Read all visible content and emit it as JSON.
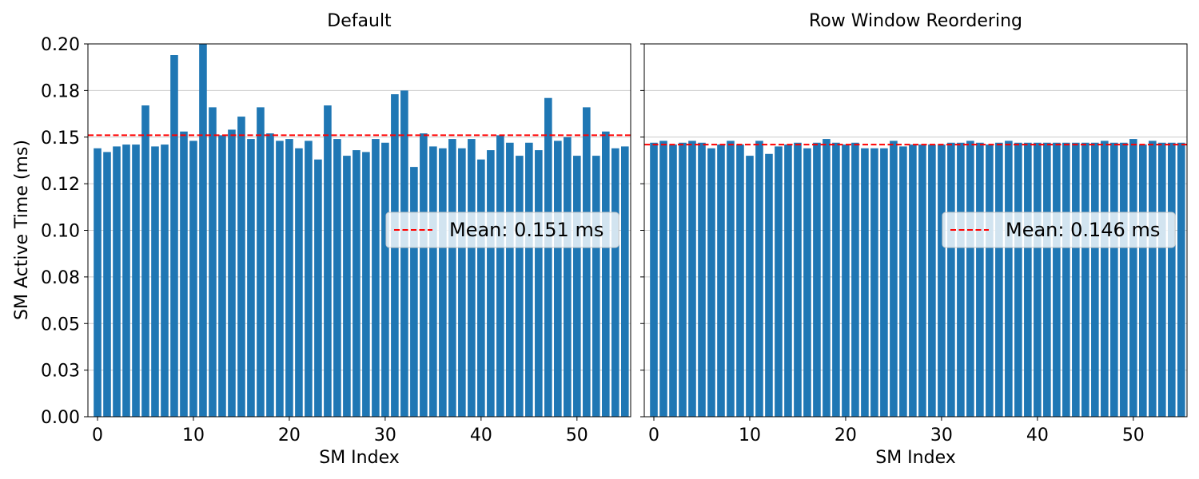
{
  "figure": {
    "ylabel": "SM Active Time (ms)"
  },
  "chart_data": [
    {
      "type": "bar",
      "title": "Default",
      "xlabel": "SM Index",
      "ylabel": "SM Active Time (ms)",
      "ylim": [
        0,
        0.2
      ],
      "xlim": [
        -1,
        55.6
      ],
      "yticks": [
        "0.00",
        "0.03",
        "0.05",
        "0.08",
        "0.10",
        "0.12",
        "0.15",
        "0.18",
        "0.20"
      ],
      "xticks": [
        "0",
        "10",
        "20",
        "30",
        "40",
        "50"
      ],
      "grid": "y",
      "legend": "center-right",
      "bar_color": "#1f77b4",
      "mean_line": {
        "label": "Mean: 0.151 ms",
        "value": 0.151,
        "color": "#ff0000"
      },
      "x": [
        0,
        1,
        2,
        3,
        4,
        5,
        6,
        7,
        8,
        9,
        10,
        11,
        12,
        13,
        14,
        15,
        16,
        17,
        18,
        19,
        20,
        21,
        22,
        23,
        24,
        25,
        26,
        27,
        28,
        29,
        30,
        31,
        32,
        33,
        34,
        35,
        36,
        37,
        38,
        39,
        40,
        41,
        42,
        43,
        44,
        45,
        46,
        47,
        48,
        49,
        50,
        51,
        52,
        53,
        54,
        55
      ],
      "values": [
        0.144,
        0.142,
        0.145,
        0.146,
        0.146,
        0.167,
        0.145,
        0.146,
        0.194,
        0.153,
        0.148,
        0.2,
        0.166,
        0.151,
        0.154,
        0.161,
        0.149,
        0.166,
        0.152,
        0.148,
        0.149,
        0.144,
        0.148,
        0.138,
        0.167,
        0.149,
        0.14,
        0.143,
        0.142,
        0.149,
        0.147,
        0.173,
        0.175,
        0.134,
        0.152,
        0.145,
        0.144,
        0.149,
        0.144,
        0.149,
        0.138,
        0.143,
        0.151,
        0.147,
        0.14,
        0.147,
        0.143,
        0.171,
        0.148,
        0.15,
        0.14,
        0.166,
        0.14,
        0.153,
        0.144,
        0.145
      ]
    },
    {
      "type": "bar",
      "title": "Row Window Reordering",
      "xlabel": "SM Index",
      "ylim": [
        0,
        0.2
      ],
      "xlim": [
        -1,
        55.6
      ],
      "xticks": [
        "0",
        "10",
        "20",
        "30",
        "40",
        "50"
      ],
      "grid": "y",
      "legend": "center-right",
      "bar_color": "#1f77b4",
      "mean_line": {
        "label": "Mean: 0.146 ms",
        "value": 0.146,
        "color": "#ff0000"
      },
      "x": [
        0,
        1,
        2,
        3,
        4,
        5,
        6,
        7,
        8,
        9,
        10,
        11,
        12,
        13,
        14,
        15,
        16,
        17,
        18,
        19,
        20,
        21,
        22,
        23,
        24,
        25,
        26,
        27,
        28,
        29,
        30,
        31,
        32,
        33,
        34,
        35,
        36,
        37,
        38,
        39,
        40,
        41,
        42,
        43,
        44,
        45,
        46,
        47,
        48,
        49,
        50,
        51,
        52,
        53,
        54,
        55
      ],
      "values": [
        0.147,
        0.148,
        0.146,
        0.147,
        0.148,
        0.147,
        0.144,
        0.146,
        0.148,
        0.146,
        0.14,
        0.148,
        0.141,
        0.145,
        0.146,
        0.147,
        0.144,
        0.147,
        0.149,
        0.147,
        0.146,
        0.147,
        0.144,
        0.144,
        0.144,
        0.148,
        0.145,
        0.146,
        0.146,
        0.146,
        0.146,
        0.147,
        0.147,
        0.148,
        0.147,
        0.146,
        0.147,
        0.148,
        0.147,
        0.147,
        0.147,
        0.147,
        0.147,
        0.147,
        0.147,
        0.147,
        0.147,
        0.148,
        0.147,
        0.147,
        0.149,
        0.146,
        0.148,
        0.147,
        0.147,
        0.147
      ]
    }
  ]
}
